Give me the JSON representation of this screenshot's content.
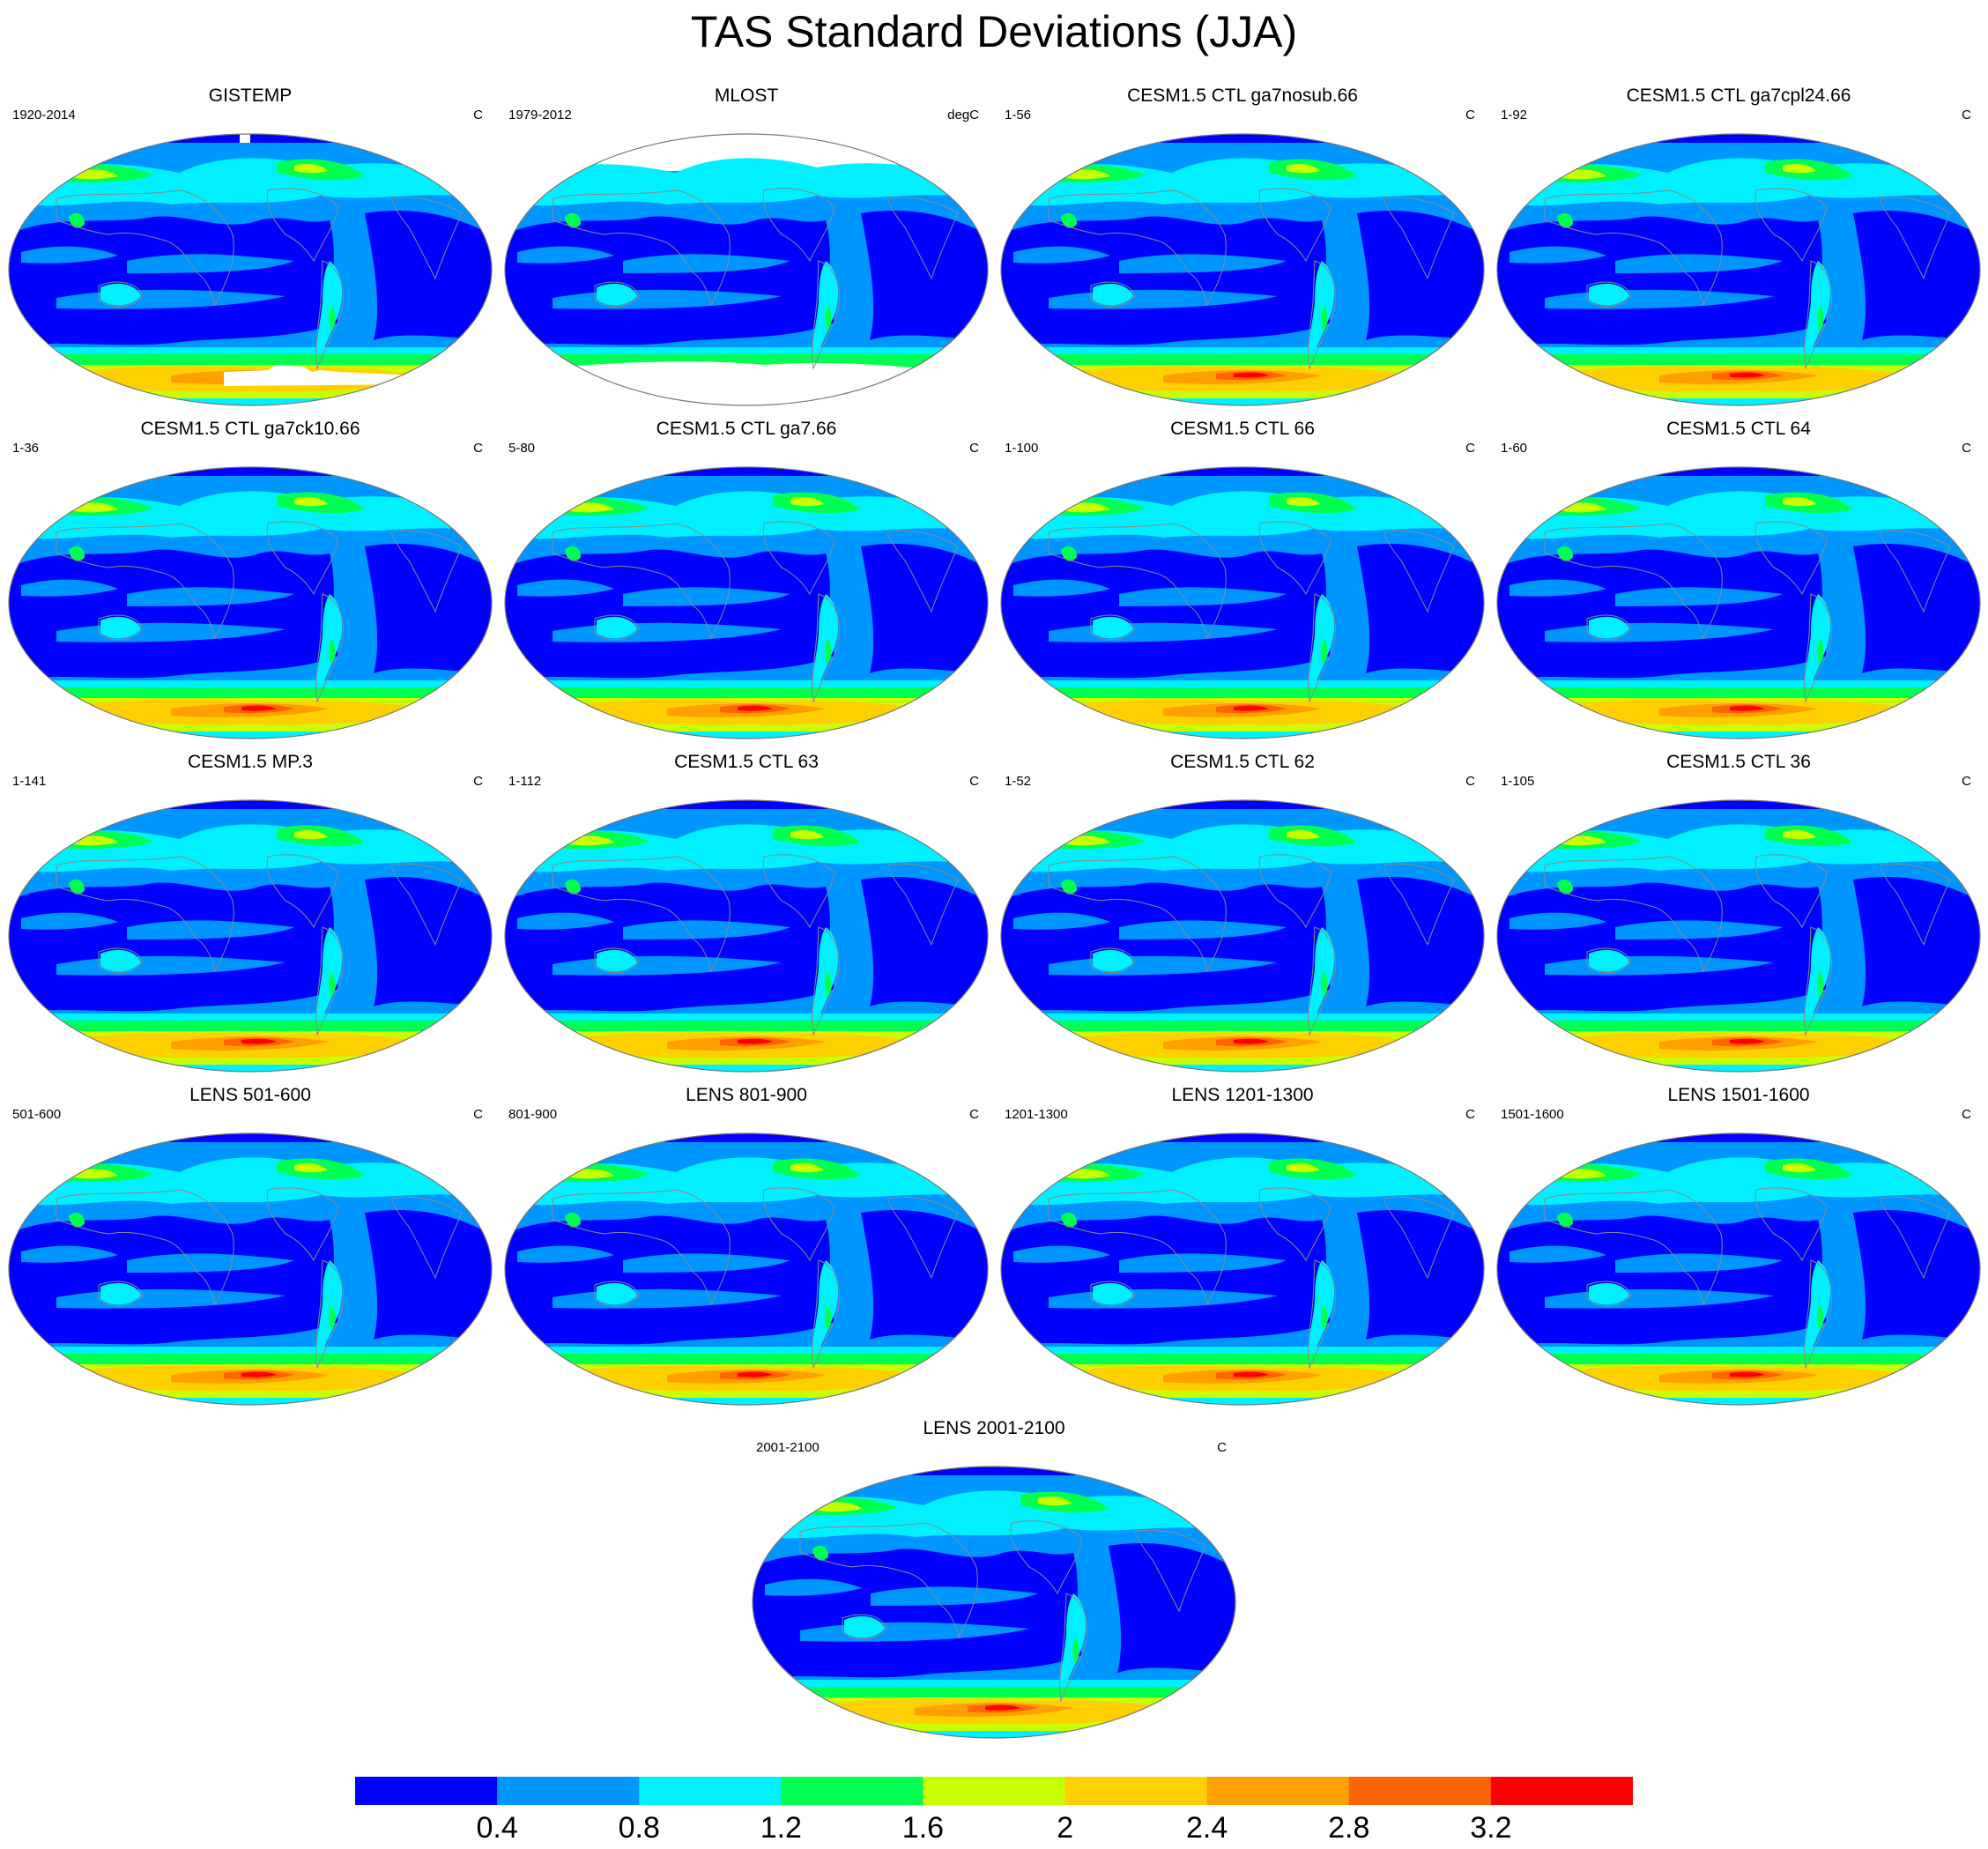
{
  "title": "TAS Standard Deviations (JJA)",
  "panels": [
    {
      "title": "GISTEMP",
      "left": "1920-2014",
      "right": "C",
      "variant": "gistemp"
    },
    {
      "title": "MLOST",
      "left": "1979-2012",
      "right": "degC",
      "variant": "mlost"
    },
    {
      "title": "CESM1.5 CTL ga7nosub.66",
      "left": "1-56",
      "right": "C",
      "variant": "model"
    },
    {
      "title": "CESM1.5 CTL ga7cpl24.66",
      "left": "1-92",
      "right": "C",
      "variant": "model"
    },
    {
      "title": "CESM1.5 CTL ga7ck10.66",
      "left": "1-36",
      "right": "C",
      "variant": "model"
    },
    {
      "title": "CESM1.5 CTL ga7.66",
      "left": "5-80",
      "right": "C",
      "variant": "model"
    },
    {
      "title": "CESM1.5 CTL 66",
      "left": "1-100",
      "right": "C",
      "variant": "model"
    },
    {
      "title": "CESM1.5 CTL 64",
      "left": "1-60",
      "right": "C",
      "variant": "model"
    },
    {
      "title": "CESM1.5 MP.3",
      "left": "1-141",
      "right": "C",
      "variant": "model"
    },
    {
      "title": "CESM1.5 CTL 63",
      "left": "1-112",
      "right": "C",
      "variant": "model"
    },
    {
      "title": "CESM1.5 CTL 62",
      "left": "1-52",
      "right": "C",
      "variant": "model"
    },
    {
      "title": "CESM1.5 CTL 36",
      "left": "1-105",
      "right": "C",
      "variant": "model"
    },
    {
      "title": "LENS 501-600",
      "left": "501-600",
      "right": "C",
      "variant": "lens"
    },
    {
      "title": "LENS 801-900",
      "left": "801-900",
      "right": "C",
      "variant": "lens"
    },
    {
      "title": "LENS 1201-1300",
      "left": "1201-1300",
      "right": "C",
      "variant": "lens"
    },
    {
      "title": "LENS 1501-1600",
      "left": "1501-1600",
      "right": "C",
      "variant": "lens"
    },
    {
      "title": "LENS 2001-2100",
      "left": "2001-2100",
      "right": "C",
      "variant": "lens"
    }
  ],
  "colorbar": {
    "colors": [
      "#0000ff",
      "#0096ff",
      "#00f0ff",
      "#00ff50",
      "#c8ff00",
      "#ffd000",
      "#ffa000",
      "#ff6400",
      "#ff0000"
    ],
    "labels": [
      "0.4",
      "0.8",
      "1.2",
      "1.6",
      "2",
      "2.4",
      "2.8",
      "3.2"
    ]
  }
}
